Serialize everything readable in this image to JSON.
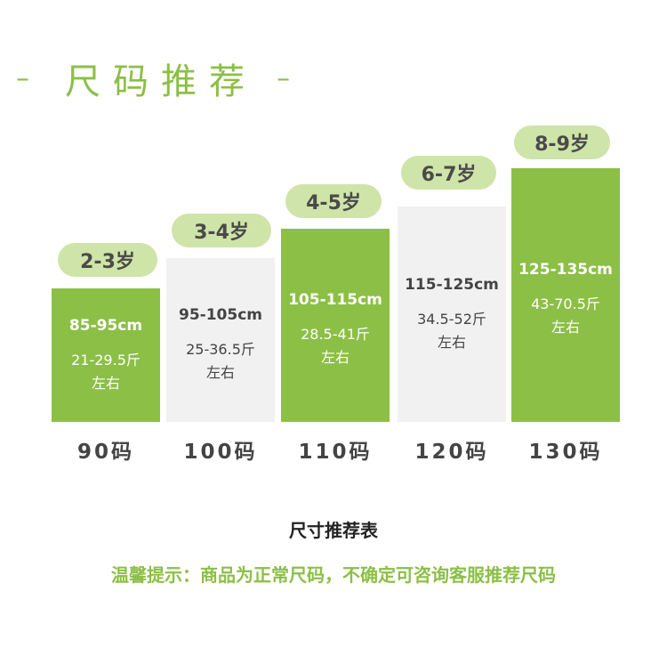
{
  "heading": {
    "dash_left": "–",
    "title": "尺码推荐",
    "dash_right": "–"
  },
  "columns": [
    {
      "age": "2-3岁",
      "height": "85-95cm",
      "weight": "21-29.5斤",
      "note": "左右",
      "size": "90码"
    },
    {
      "age": "3-4岁",
      "height": "95-105cm",
      "weight": "25-36.5斤",
      "note": "左右",
      "size": "100码"
    },
    {
      "age": "4-5岁",
      "height": "105-115cm",
      "weight": "28.5-41斤",
      "note": "左右",
      "size": "110码"
    },
    {
      "age": "6-7岁",
      "height": "115-125cm",
      "weight": "34.5-52斤",
      "note": "左右",
      "size": "120码"
    },
    {
      "age": "8-9岁",
      "height": "125-135cm",
      "weight": "43-70.5斤",
      "note": "左右",
      "size": "130码"
    }
  ],
  "caption": "尺寸推荐表",
  "tip": "温馨提示：商品为正常尺码，不确定可咨询客服推荐尺码",
  "colors": {
    "accent_green": "#8cbf46",
    "light_green": "#cfe4a8",
    "light_gray": "#f1f1f1"
  }
}
